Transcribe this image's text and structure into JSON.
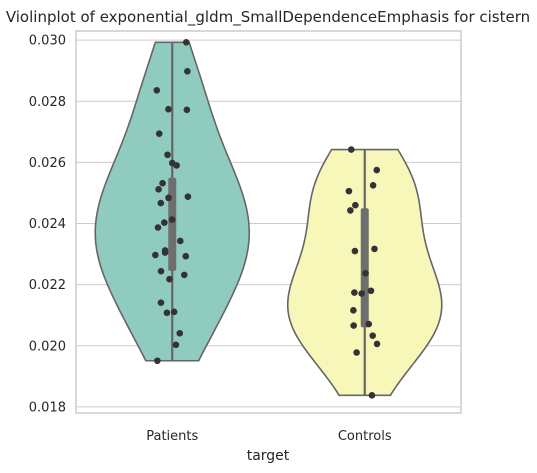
{
  "chart_data": {
    "type": "violin",
    "title": "Violinplot of exponential_gldm_SmallDependenceEmphasis for cistern",
    "xlabel": "target",
    "ylabel": "",
    "ylim": [
      0.0178,
      0.0303
    ],
    "yticks": [
      "0.018",
      "0.020",
      "0.022",
      "0.024",
      "0.026",
      "0.028",
      "0.030"
    ],
    "grid": true,
    "categories": [
      "Patients",
      "Controls"
    ],
    "colors": [
      "#8fcbbf",
      "#f7f7b9"
    ],
    "series": [
      {
        "category": "Patients",
        "points": [
          0.02993,
          0.02898,
          0.02836,
          0.02774,
          0.02772,
          0.02694,
          0.02625,
          0.02598,
          0.0259,
          0.02532,
          0.02512,
          0.02488,
          0.02484,
          0.02467,
          0.02413,
          0.02403,
          0.02387,
          0.02343,
          0.02312,
          0.02305,
          0.02297,
          0.02293,
          0.02244,
          0.02232,
          0.02218,
          0.02141,
          0.02111,
          0.02108,
          0.02041,
          0.02003,
          0.01951
        ],
        "quartiles": [
          0.02245,
          0.0255
        ],
        "median": 0.0244,
        "range": [
          0.01951,
          0.02993
        ]
      },
      {
        "category": "Controls",
        "points": [
          0.02642,
          0.02575,
          0.02525,
          0.02506,
          0.0246,
          0.02443,
          0.02317,
          0.0231,
          0.02237,
          0.0218,
          0.02174,
          0.02171,
          0.02116,
          0.02071,
          0.02066,
          0.02033,
          0.02006,
          0.01978,
          0.01838
        ],
        "quartiles": [
          0.0206,
          0.0245
        ],
        "median": 0.0218,
        "range": [
          0.01838,
          0.02642
        ]
      }
    ]
  }
}
